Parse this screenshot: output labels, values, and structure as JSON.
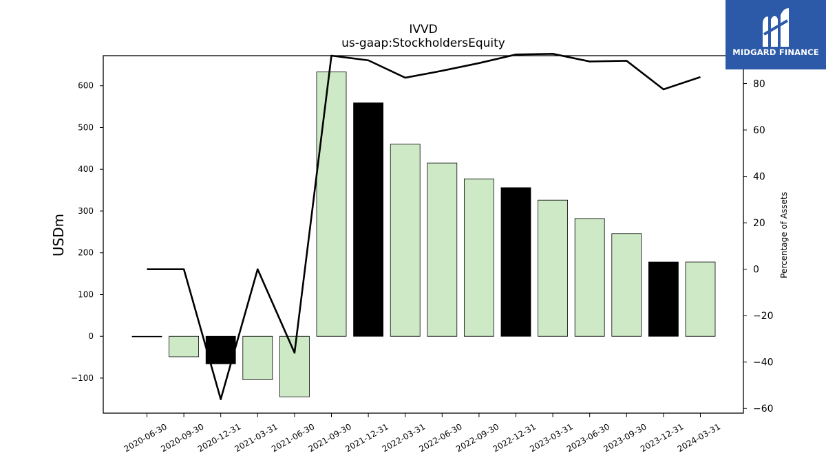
{
  "brand": {
    "name": "MIDGARD FINANCE",
    "bg_color": "#2d5aa8",
    "mark_icon": "stylized-m-logo-icon"
  },
  "chart_data": {
    "type": "bar",
    "title": "IVVD",
    "subtitle": "us-gaap:StockholdersEquity",
    "ylabel": "USDm",
    "y2label": "Percentage of Assets",
    "categories": [
      "2020-06-30",
      "2020-09-30",
      "2020-12-31",
      "2021-03-31",
      "2021-06-30",
      "2021-09-30",
      "2021-12-31",
      "2022-03-31",
      "2022-06-30",
      "2022-09-30",
      "2022-12-31",
      "2023-03-31",
      "2023-06-30",
      "2023-09-30",
      "2023-12-31",
      "2024-03-31"
    ],
    "series": [
      {
        "type": "bar",
        "axis": "left",
        "values": [
          0,
          -49,
          -66,
          -104,
          -145,
          633,
          559,
          460,
          415,
          377,
          356,
          326,
          282,
          246,
          178,
          178
        ],
        "colors": [
          "#cde9c6",
          "#cde9c6",
          "#000000",
          "#cde9c6",
          "#cde9c6",
          "#cde9c6",
          "#000000",
          "#cde9c6",
          "#cde9c6",
          "#cde9c6",
          "#000000",
          "#cde9c6",
          "#cde9c6",
          "#cde9c6",
          "#000000",
          "#cde9c6"
        ]
      },
      {
        "type": "line",
        "axis": "right",
        "color": "#000000",
        "values": [
          0,
          0,
          -56,
          0,
          -36,
          92,
          90,
          82.5,
          85.5,
          88.8,
          92.5,
          92.8,
          89.5,
          89.8,
          77.5,
          82.8
        ]
      }
    ],
    "ylim": [
      -184,
      672
    ],
    "y2lim": [
      -62,
      92
    ],
    "yticks": [
      -100,
      0,
      100,
      200,
      300,
      400,
      500,
      600
    ],
    "y2ticks": [
      -60,
      -40,
      -20,
      0,
      20,
      40,
      60,
      80
    ],
    "grid": false,
    "legend": "none"
  }
}
